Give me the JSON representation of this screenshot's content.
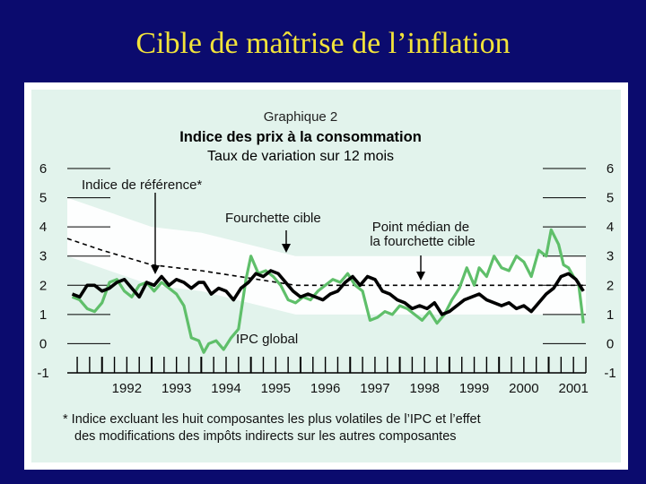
{
  "slide": {
    "title": "Cible de maîtrise de l’inflation"
  },
  "chart_data": {
    "type": "line",
    "kicker": "Graphique 2",
    "title": "Indice des prix à la consommation",
    "subtitle": "Taux de variation sur 12 mois",
    "ylim": [
      -1,
      6
    ],
    "yticks": [
      "-1",
      "0",
      "1",
      "2",
      "3",
      "4",
      "5",
      "6"
    ],
    "xlim": [
      1991.3,
      2001.75
    ],
    "xticks": [
      "1992",
      "1993",
      "1994",
      "1995",
      "1996",
      "1997",
      "1998",
      "1999",
      "2000",
      "2001"
    ],
    "annotations": {
      "core": "Indice de référence*",
      "band": "Fourchette cible",
      "midpoint": "Point médian de la fourchette cible",
      "total": "IPC global"
    },
    "footnote": "* Indice excluant les huit composantes les plus volatiles de l’IPC et l’effet des modifications des impôts indirects sur les autres composantes",
    "colors": {
      "total": "#5fbf6a",
      "core": "#000000",
      "band": "#ffffff",
      "panel": "#e2f3ec"
    },
    "target_band": {
      "x": [
        1991.3,
        1993.0,
        1994.0,
        1995.9,
        2001.75
      ],
      "lower": [
        3.0,
        2.0,
        1.8,
        1.0,
        1.0
      ],
      "upper": [
        5.0,
        4.0,
        3.8,
        3.0,
        3.0
      ]
    },
    "target_midpoint": {
      "x": [
        1991.3,
        1992.0,
        1993.0,
        1994.0,
        1995.9,
        2001.75
      ],
      "values": [
        3.6,
        3.2,
        2.7,
        2.5,
        2.0,
        2.0
      ]
    },
    "series": [
      {
        "name": "IPC global",
        "x": [
          1991.4,
          1991.55,
          1991.7,
          1991.85,
          1992.0,
          1992.15,
          1992.3,
          1992.45,
          1992.6,
          1992.75,
          1992.9,
          1993.05,
          1993.2,
          1993.35,
          1993.5,
          1993.65,
          1993.8,
          1993.95,
          1994.05,
          1994.15,
          1994.3,
          1994.45,
          1994.6,
          1994.75,
          1994.9,
          1995.0,
          1995.15,
          1995.3,
          1995.45,
          1995.6,
          1995.75,
          1995.9,
          1996.05,
          1996.2,
          1996.35,
          1996.5,
          1996.65,
          1996.8,
          1996.95,
          1997.1,
          1997.25,
          1997.4,
          1997.55,
          1997.7,
          1997.85,
          1998.0,
          1998.15,
          1998.3,
          1998.45,
          1998.6,
          1998.75,
          1998.9,
          1999.05,
          1999.2,
          1999.35,
          1999.5,
          1999.6,
          1999.75,
          1999.9,
          2000.05,
          2000.2,
          2000.35,
          2000.5,
          2000.65,
          2000.8,
          2000.95,
          2001.05,
          2001.2,
          2001.3,
          2001.4,
          2001.5,
          2001.6,
          2001.7
        ],
        "values": [
          1.6,
          1.5,
          1.2,
          1.1,
          1.4,
          2.1,
          2.2,
          1.8,
          1.6,
          2.0,
          2.1,
          1.8,
          2.1,
          1.9,
          1.7,
          1.3,
          0.2,
          0.1,
          -0.3,
          0.0,
          0.1,
          -0.2,
          0.2,
          0.5,
          2.2,
          3.0,
          2.4,
          2.5,
          2.3,
          2.0,
          1.5,
          1.4,
          1.6,
          1.5,
          1.8,
          2.0,
          2.2,
          2.1,
          2.4,
          2.0,
          1.8,
          0.8,
          0.9,
          1.1,
          1.0,
          1.3,
          1.2,
          1.0,
          0.8,
          1.1,
          0.7,
          1.0,
          1.5,
          1.9,
          2.6,
          2.0,
          2.6,
          2.3,
          3.0,
          2.6,
          2.5,
          3.0,
          2.8,
          2.3,
          3.2,
          3.0,
          3.9,
          3.4,
          2.7,
          2.6,
          2.3,
          2.1,
          0.7
        ]
      },
      {
        "name": "Indice de référence*",
        "x": [
          1991.4,
          1991.55,
          1991.7,
          1991.85,
          1992.0,
          1992.15,
          1992.3,
          1992.45,
          1992.6,
          1992.75,
          1992.9,
          1993.05,
          1993.2,
          1993.35,
          1993.5,
          1993.65,
          1993.8,
          1993.95,
          1994.05,
          1994.2,
          1994.35,
          1994.5,
          1994.65,
          1994.8,
          1994.95,
          1995.1,
          1995.25,
          1995.4,
          1995.55,
          1995.7,
          1995.85,
          1996.0,
          1996.15,
          1996.3,
          1996.45,
          1996.6,
          1996.75,
          1996.9,
          1997.05,
          1997.2,
          1997.35,
          1997.5,
          1997.65,
          1997.8,
          1997.95,
          1998.1,
          1998.25,
          1998.4,
          1998.55,
          1998.7,
          1998.85,
          1999.0,
          1999.15,
          1999.3,
          1999.45,
          1999.6,
          1999.75,
          1999.9,
          2000.05,
          2000.2,
          2000.35,
          2000.5,
          2000.65,
          2000.8,
          2000.95,
          2001.1,
          2001.25,
          2001.4,
          2001.55,
          2001.7
        ],
        "values": [
          1.7,
          1.6,
          2.0,
          2.0,
          1.8,
          1.9,
          2.1,
          2.2,
          1.9,
          1.6,
          2.1,
          2.0,
          2.3,
          2.0,
          2.2,
          2.1,
          1.9,
          2.1,
          2.1,
          1.7,
          1.9,
          1.8,
          1.5,
          1.9,
          2.1,
          2.4,
          2.3,
          2.5,
          2.4,
          2.1,
          1.8,
          1.6,
          1.7,
          1.6,
          1.5,
          1.7,
          1.8,
          2.1,
          2.3,
          2.0,
          2.3,
          2.2,
          1.8,
          1.7,
          1.5,
          1.4,
          1.2,
          1.3,
          1.2,
          1.4,
          1.0,
          1.1,
          1.3,
          1.5,
          1.6,
          1.7,
          1.5,
          1.4,
          1.3,
          1.4,
          1.2,
          1.3,
          1.1,
          1.4,
          1.7,
          1.9,
          2.3,
          2.4,
          2.2,
          1.8
        ]
      }
    ]
  }
}
